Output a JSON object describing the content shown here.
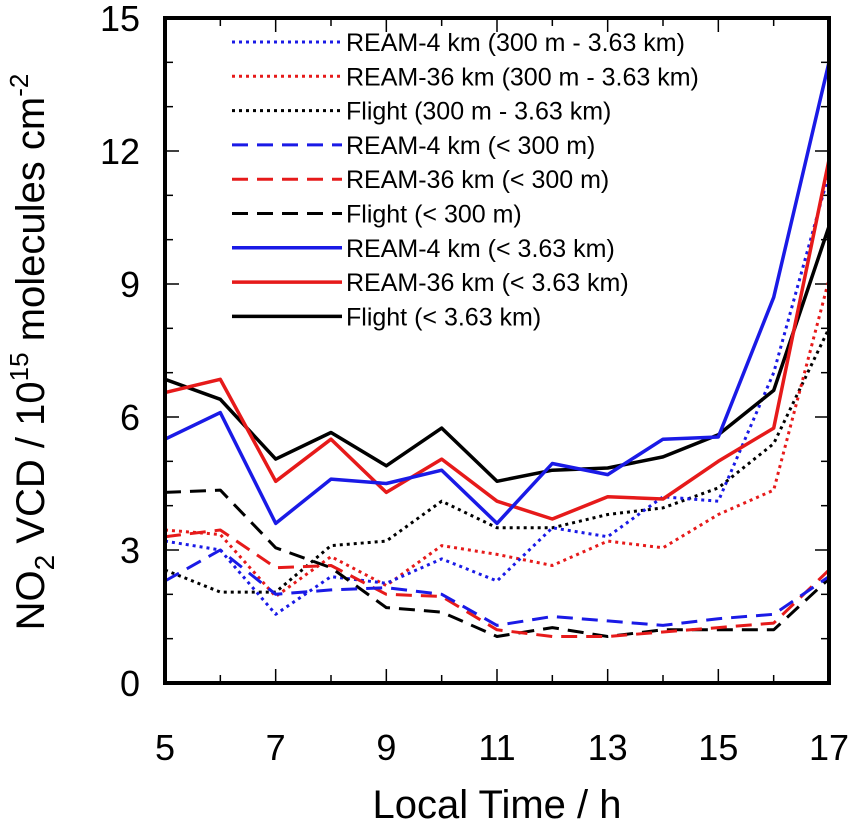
{
  "chart_data": {
    "type": "line",
    "xlabel": "Local Time / h",
    "ylabel": {
      "parts": [
        "NO",
        "2",
        " VCD / 10",
        "15",
        " molecules cm",
        "-2"
      ]
    },
    "xlim": [
      5,
      17
    ],
    "ylim": [
      0,
      15
    ],
    "xticks": [
      5,
      7,
      9,
      11,
      13,
      15,
      17
    ],
    "yticks": [
      0,
      3,
      6,
      9,
      12,
      15
    ],
    "x": [
      5,
      6,
      7,
      8,
      9,
      10,
      11,
      12,
      13,
      14,
      15,
      16,
      17
    ],
    "legend_position": "top",
    "series": [
      {
        "name": "REAM-4 km (300 m - 3.63 km)",
        "color": "#1a1ae6",
        "style": "dotted",
        "values": [
          3.2,
          3.0,
          1.55,
          2.4,
          2.25,
          2.8,
          2.3,
          3.5,
          3.3,
          4.2,
          4.1,
          7.0,
          11.5
        ]
      },
      {
        "name": "REAM-36 km (300 m - 3.63 km)",
        "color": "#e61a1a",
        "style": "dotted",
        "values": [
          3.45,
          3.35,
          1.95,
          2.85,
          2.2,
          3.1,
          2.9,
          2.65,
          3.2,
          3.05,
          3.8,
          4.35,
          9.1
        ]
      },
      {
        "name": "Flight (300 m - 3.63 km)",
        "color": "#000000",
        "style": "dotted",
        "values": [
          2.55,
          2.05,
          2.05,
          3.1,
          3.2,
          4.1,
          3.5,
          3.5,
          3.8,
          3.95,
          4.4,
          5.4,
          8.0
        ]
      },
      {
        "name": "REAM-4 km (< 300 m)",
        "color": "#1a1ae6",
        "style": "dashed",
        "values": [
          2.3,
          3.0,
          2.0,
          2.1,
          2.15,
          2.0,
          1.3,
          1.5,
          1.4,
          1.3,
          1.45,
          1.55,
          2.4
        ]
      },
      {
        "name": "REAM-36 km (< 300 m)",
        "color": "#e61a1a",
        "style": "dashed",
        "values": [
          3.3,
          3.45,
          2.6,
          2.65,
          2.0,
          1.95,
          1.2,
          1.05,
          1.05,
          1.15,
          1.25,
          1.35,
          2.55
        ]
      },
      {
        "name": "Flight (< 300 m)",
        "color": "#000000",
        "style": "dashed",
        "values": [
          4.3,
          4.35,
          3.05,
          2.6,
          1.7,
          1.6,
          1.05,
          1.25,
          1.05,
          1.2,
          1.2,
          1.2,
          2.35
        ]
      },
      {
        "name": "REAM-4 km (< 3.63 km)",
        "color": "#1a1ae6",
        "style": "solid",
        "values": [
          5.5,
          6.1,
          3.6,
          4.6,
          4.5,
          4.8,
          3.6,
          4.95,
          4.7,
          5.5,
          5.55,
          8.7,
          14.0
        ]
      },
      {
        "name": "REAM-36 km (< 3.63 km)",
        "color": "#e61a1a",
        "style": "solid",
        "values": [
          6.55,
          6.85,
          4.55,
          5.5,
          4.3,
          5.05,
          4.1,
          3.7,
          4.2,
          4.15,
          5.0,
          5.75,
          11.8
        ]
      },
      {
        "name": "Flight (< 3.63 km)",
        "color": "#000000",
        "style": "solid",
        "values": [
          6.85,
          6.4,
          5.05,
          5.65,
          4.9,
          5.75,
          4.55,
          4.8,
          4.85,
          5.1,
          5.6,
          6.6,
          10.3
        ]
      }
    ]
  }
}
